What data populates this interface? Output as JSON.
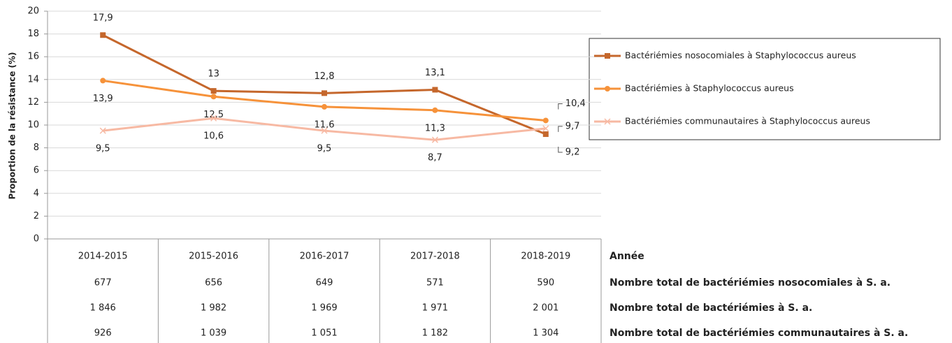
{
  "chart_data": {
    "type": "line",
    "y_label": "Proportion de la résistance (%)",
    "categories": [
      "2014-2015",
      "2015-2016",
      "2016-2017",
      "2017-2018",
      "2018-2019"
    ],
    "ylim": [
      0,
      20
    ],
    "yticks": [
      0,
      2,
      4,
      6,
      8,
      10,
      12,
      14,
      16,
      18,
      20
    ],
    "grid": true,
    "legend": "right",
    "series": [
      {
        "name": "Bactériémies nosocomiales à Staphylococcus aureus",
        "color": "#c5672c",
        "marker": "square",
        "values": [
          17.9,
          13,
          12.8,
          13.1,
          9.2
        ],
        "value_labels": [
          "17,9",
          "13",
          "12,8",
          "13,1",
          "9,2"
        ]
      },
      {
        "name": "Bactériémies à Staphylococcus aureus",
        "color": "#f6923a",
        "marker": "circle",
        "values": [
          13.9,
          12.5,
          11.6,
          11.3,
          10.4
        ],
        "value_labels": [
          "13,9",
          "12,5",
          "11,6",
          "11,3",
          "10,4"
        ]
      },
      {
        "name": "Bactériémies communautaires à Staphylococcus aureus",
        "color": "#f7b9a3",
        "marker": "x",
        "values": [
          9.5,
          10.6,
          9.5,
          8.7,
          9.7
        ],
        "value_labels": [
          "9,5",
          "10,6",
          "9,5",
          "8,7",
          "9,7"
        ]
      }
    ],
    "table": {
      "header": "Année",
      "rows": [
        {
          "label": "Nombre total de bactériémies nosocomiales à S. a.",
          "cells": [
            "677",
            "656",
            "649",
            "571",
            "590"
          ]
        },
        {
          "label": "Nombre total de bactériémies à S. a.",
          "cells": [
            "1 846",
            "1 982",
            "1 969",
            "1 971",
            "2 001"
          ]
        },
        {
          "label": "Nombre total de bactériémies communautaires à S. a.",
          "cells": [
            "926",
            "1 039",
            "1 051",
            "1 182",
            "1 304"
          ]
        }
      ]
    }
  }
}
